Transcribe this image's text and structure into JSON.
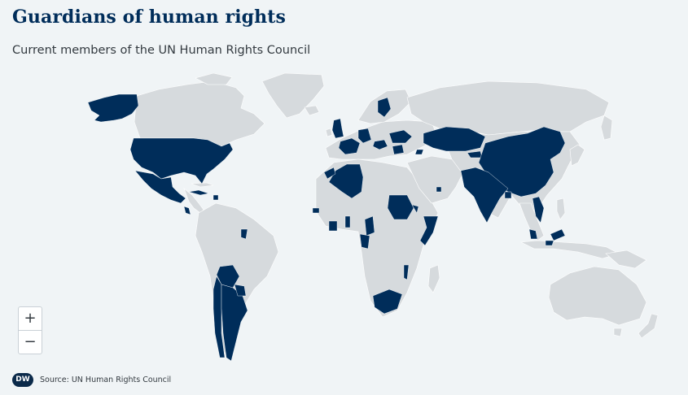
{
  "header": {
    "title": "Guardians of human rights",
    "subtitle": "Current members of the UN Human Rights Council"
  },
  "map": {
    "colors": {
      "land": "#d6dadd",
      "member": "#002d5a",
      "water": "#f0f4f6",
      "border": "#ffffff"
    }
  },
  "zoom": {
    "in_label": "+",
    "out_label": "−"
  },
  "footer": {
    "logo_text": "DW",
    "source": "Source: UN Human Rights Council"
  }
}
